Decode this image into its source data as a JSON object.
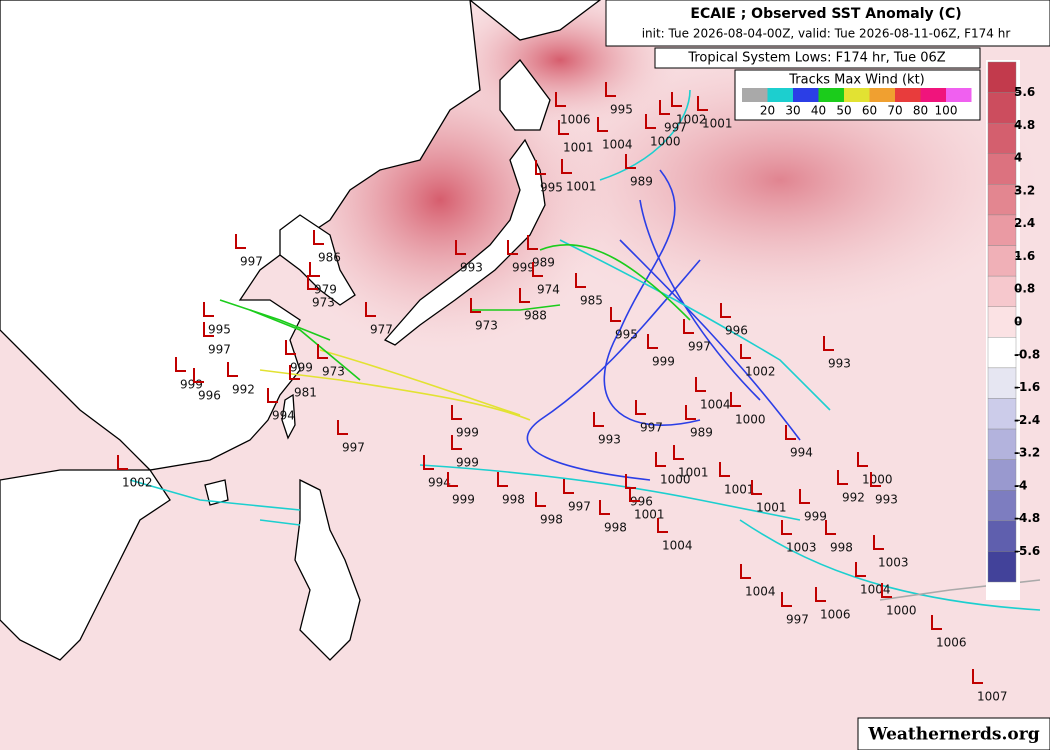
{
  "title": "ECAIE ; Observed SST Anomaly (C)",
  "subtitle": "init: Tue 2026-08-04-00Z, valid: Tue 2026-08-11-06Z, F174 hr",
  "lows_title": "Tropical System Lows: F174 hr, Tue 06Z",
  "wind_legend": {
    "title": "Tracks Max Wind (kt)",
    "colors": [
      "#a9a9a9",
      "#1ccfcf",
      "#2b3ee6",
      "#1bcc1b",
      "#e2e232",
      "#f0a030",
      "#e83c3c",
      "#f0147c",
      "#f060f0"
    ],
    "labels": [
      "20",
      "30",
      "40",
      "50",
      "60",
      "70",
      "80",
      "100"
    ]
  },
  "sst_colorbar": {
    "ticks": [
      5.6,
      4.8,
      4,
      3.2,
      2.4,
      1.6,
      0.8,
      0,
      -0.8,
      -1.6,
      -2.4,
      -3.2,
      -4,
      -4.8,
      -5.6
    ],
    "colors": [
      "#c23a4c",
      "#cc4d5e",
      "#d45f6e",
      "#dc727f",
      "#e38690",
      "#ea9aa3",
      "#f0b0b7",
      "#f6c8cd",
      "#fbe2e4",
      "#ffffff",
      "#e6e6f2",
      "#ccccea",
      "#b3b3dd",
      "#9999cf",
      "#7d7dc0",
      "#5f5fae",
      "#42429a"
    ]
  },
  "pressure_labels": [
    "997",
    "986",
    "979",
    "973",
    "977",
    "995",
    "997",
    "999",
    "973",
    "999",
    "996",
    "992",
    "981",
    "994",
    "997",
    "993",
    "999",
    "989",
    "974",
    "985",
    "973",
    "988",
    "995",
    "995",
    "1001",
    "1006",
    "995",
    "1001",
    "1004",
    "997",
    "1002",
    "1001",
    "1000",
    "989",
    "996",
    "997",
    "993",
    "1002",
    "999",
    "1004",
    "1000",
    "989",
    "993",
    "999",
    "997",
    "994",
    "999",
    "1001",
    "1000",
    "994",
    "999",
    "998",
    "997",
    "996",
    "998",
    "998",
    "1001",
    "1004",
    "1001",
    "1001",
    "999",
    "1000",
    "992",
    "993",
    "998",
    "1003",
    "1003",
    "1004",
    "1004",
    "1000",
    "997",
    "1006",
    "1006",
    "1007",
    "1002"
  ],
  "watermark": "Weathernerds.org"
}
